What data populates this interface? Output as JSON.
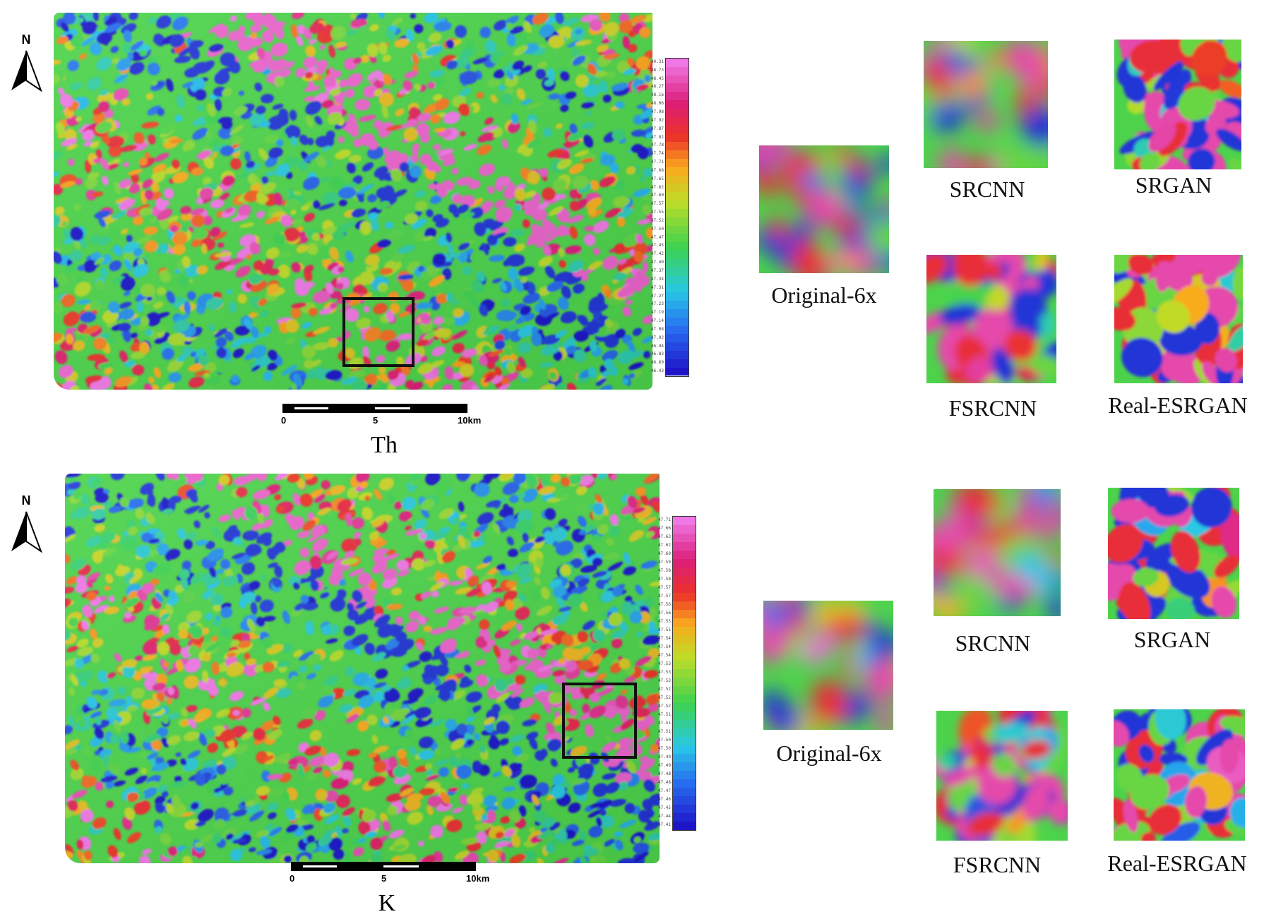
{
  "north_label": "N",
  "scale_bar": {
    "ticks": [
      "0",
      "5",
      "10km"
    ]
  },
  "panels": [
    {
      "map_label": "Th",
      "legend_values": [
        "49.31",
        "48.73",
        "48.45",
        "48.27",
        "48.16",
        "48.06",
        "47.98",
        "47.92",
        "47.87",
        "47.82",
        "47.78",
        "47.74",
        "47.71",
        "47.68",
        "47.65",
        "47.62",
        "47.60",
        "47.57",
        "47.55",
        "47.52",
        "47.50",
        "47.47",
        "47.45",
        "47.42",
        "47.40",
        "47.37",
        "47.34",
        "47.31",
        "47.27",
        "47.23",
        "47.19",
        "47.14",
        "47.08",
        "47.02",
        "46.94",
        "46.83",
        "46.69",
        "46.43"
      ],
      "insets": [
        "Original-6x",
        "SRCNN",
        "SRGAN",
        "FSRCNN",
        "Real-ESRGAN"
      ]
    },
    {
      "map_label": "K",
      "legend_values": [
        "47.71",
        "47.66",
        "47.63",
        "47.62",
        "47.60",
        "47.59",
        "47.58",
        "47.58",
        "47.57",
        "47.57",
        "47.56",
        "47.56",
        "47.55",
        "47.55",
        "47.54",
        "47.54",
        "47.54",
        "47.53",
        "47.53",
        "47.53",
        "47.52",
        "47.52",
        "47.52",
        "47.51",
        "47.51",
        "47.51",
        "47.50",
        "47.50",
        "47.49",
        "47.49",
        "47.48",
        "47.48",
        "47.47",
        "47.46",
        "47.45",
        "47.44",
        "47.41"
      ],
      "insets": [
        "Original-6x",
        "SRCNN",
        "SRGAN",
        "FSRCNN",
        "Real-ESRGAN"
      ]
    }
  ]
}
